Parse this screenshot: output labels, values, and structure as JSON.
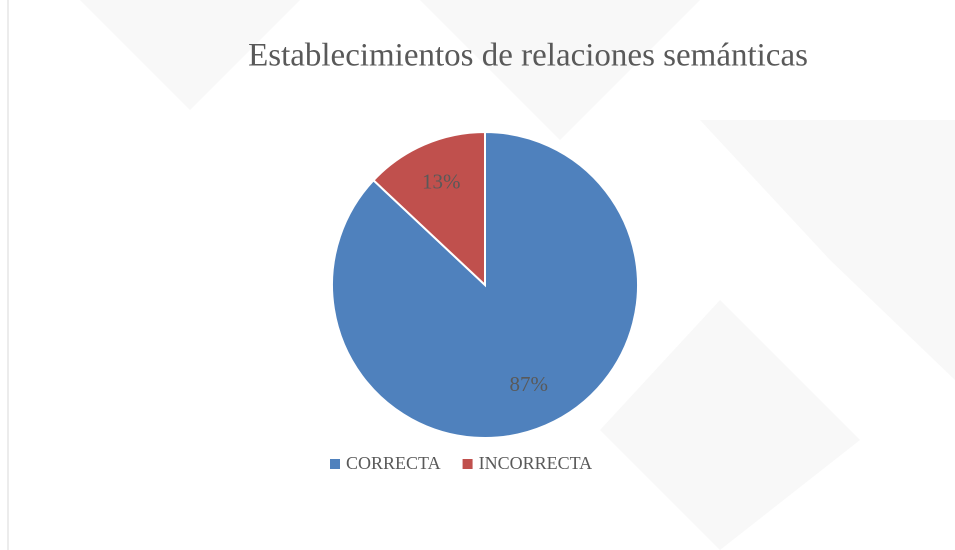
{
  "chart_data": {
    "type": "pie",
    "title": "Establecimientos de relaciones semánticas",
    "categories": [
      "CORRECTA",
      "INCORRECTA"
    ],
    "values": [
      87,
      13
    ],
    "value_labels": [
      "87%",
      "13%"
    ],
    "colors": [
      "#4f81bd",
      "#c0504d"
    ],
    "legend": "bottom"
  }
}
